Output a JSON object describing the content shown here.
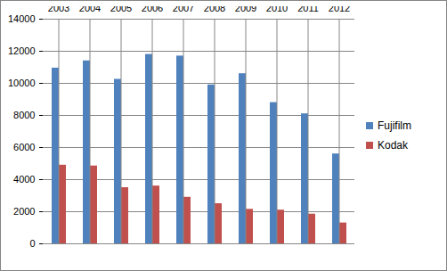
{
  "chart_data": {
    "type": "bar",
    "categories": [
      "2003",
      "2004",
      "2005",
      "2006",
      "2007",
      "2008",
      "2009",
      "2010",
      "2011",
      "2012"
    ],
    "series": [
      {
        "name": "Fujifilm",
        "color": "#4f81bd",
        "values": [
          10950,
          11400,
          10250,
          11800,
          11700,
          9900,
          10600,
          8800,
          8100,
          5600
        ]
      },
      {
        "name": "Kodak",
        "color": "#c0504d",
        "values": [
          4900,
          4850,
          3500,
          3600,
          2900,
          2500,
          2150,
          2100,
          1850,
          1300
        ]
      }
    ],
    "ylim": [
      0,
      14000
    ],
    "yticks": [
      0,
      2000,
      4000,
      6000,
      8000,
      10000,
      12000,
      14000
    ],
    "grid": true,
    "legend": "right"
  }
}
